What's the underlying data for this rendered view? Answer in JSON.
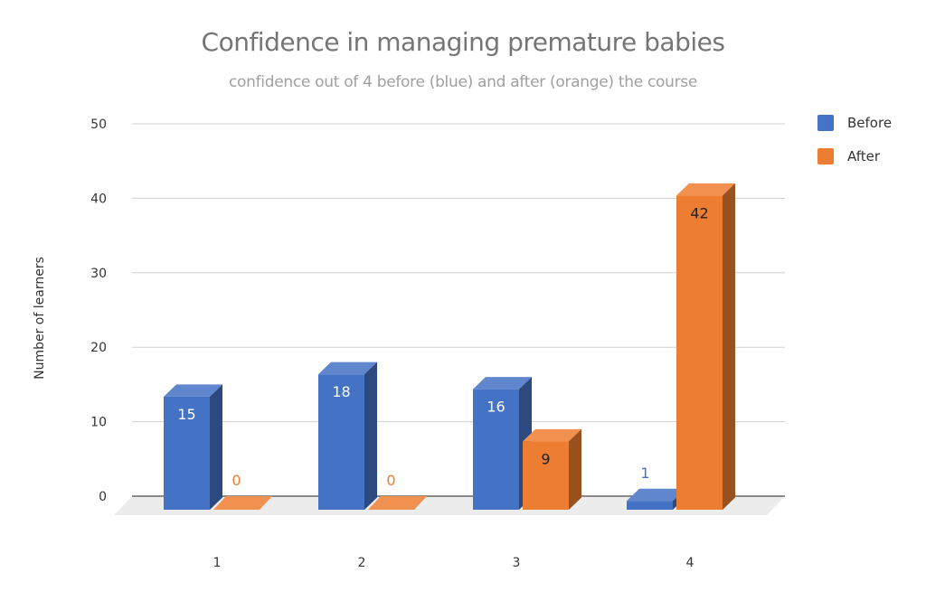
{
  "chart_data": {
    "type": "bar",
    "style": "3d-clustered-column",
    "title": "Confidence in managing premature babies",
    "subtitle": "confidence out of 4 before (blue) and after (orange) the course",
    "xlabel": "",
    "ylabel": "Number of learners",
    "categories": [
      "1",
      "2",
      "3",
      "4"
    ],
    "series": [
      {
        "name": "Before",
        "color": "#4472C4",
        "values": [
          15,
          18,
          16,
          1
        ]
      },
      {
        "name": "After",
        "color": "#ED7D31",
        "values": [
          0,
          0,
          9,
          42
        ]
      }
    ],
    "ylim": [
      0,
      50
    ],
    "yticks": [
      "0",
      "10",
      "20",
      "30",
      "40",
      "50"
    ],
    "grid": true,
    "legend_position": "top-right"
  }
}
